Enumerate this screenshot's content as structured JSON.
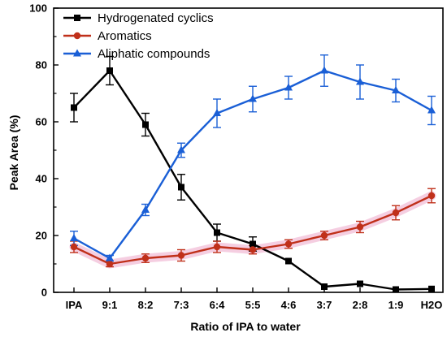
{
  "chart_data": {
    "type": "line",
    "xlabel": "Ratio of IPA to water",
    "ylabel": "Peak Area (%)",
    "categories": [
      "IPA",
      "9:1",
      "8:2",
      "7:3",
      "6:4",
      "5:5",
      "4:6",
      "3:7",
      "2:8",
      "1:9",
      "H2O"
    ],
    "ylim": [
      0,
      100
    ],
    "yticks": [
      0,
      20,
      40,
      60,
      80,
      100
    ],
    "grid": false,
    "legend_position": "top-left",
    "series": [
      {
        "name": "Hydrogenated cyclics",
        "color": "#000000",
        "marker": "square",
        "values": [
          65,
          78,
          59,
          37,
          21,
          17,
          11,
          2,
          3,
          1,
          1.2
        ],
        "errors": [
          5,
          5,
          4,
          4.5,
          3,
          2.5,
          0,
          0,
          0,
          0,
          0
        ]
      },
      {
        "name": "Aromatics",
        "color": "#c0301a",
        "marker": "circle",
        "values": [
          16,
          10,
          12,
          13,
          16,
          15,
          17,
          20,
          23,
          28,
          34
        ],
        "errors": [
          2,
          1,
          1.5,
          2,
          2,
          1.5,
          1.5,
          1.5,
          2,
          2.5,
          2.5
        ]
      },
      {
        "name": "Aliphatic compounds",
        "color": "#1a5fd6",
        "marker": "triangle",
        "values": [
          19,
          12,
          29,
          50,
          63,
          68,
          72,
          78,
          74,
          71,
          64
        ],
        "errors": [
          2.5,
          1,
          2,
          2.5,
          5,
          4.5,
          4,
          5.5,
          6,
          4,
          5
        ]
      }
    ]
  }
}
